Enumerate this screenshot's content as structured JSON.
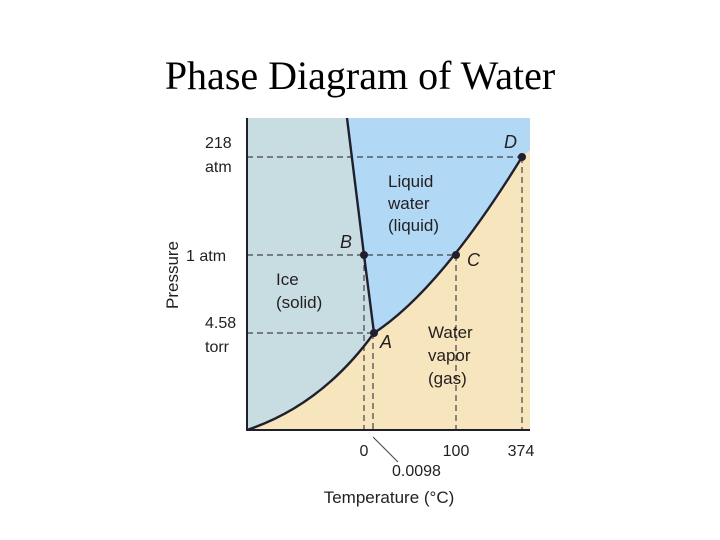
{
  "title": "Phase Diagram of Water",
  "axes": {
    "ylabel": "Pressure",
    "xlabel": "Temperature (°C)",
    "y_ticks": [
      {
        "top": "218",
        "bottom": "atm"
      },
      {
        "top": "1 atm",
        "bottom": ""
      },
      {
        "top": "4.58",
        "bottom": "torr"
      }
    ],
    "x_ticks": [
      "0",
      "100",
      "374"
    ],
    "x_extra_tick": "0.0098"
  },
  "regions": {
    "solid": {
      "line1": "Ice",
      "line2": "(solid)"
    },
    "liquid": {
      "line1": "Liquid",
      "line2": "water",
      "line3": "(liquid)"
    },
    "gas": {
      "line1": "Water",
      "line2": "vapor",
      "line3": "(gas)"
    }
  },
  "points": {
    "A": "A",
    "B": "B",
    "C": "C",
    "D": "D"
  },
  "colors": {
    "solid": "#c8dde1",
    "liquid": "#b1d8f4",
    "gas": "#f7e5bd",
    "line": "#1f1f2e",
    "dash": "#444444"
  }
}
